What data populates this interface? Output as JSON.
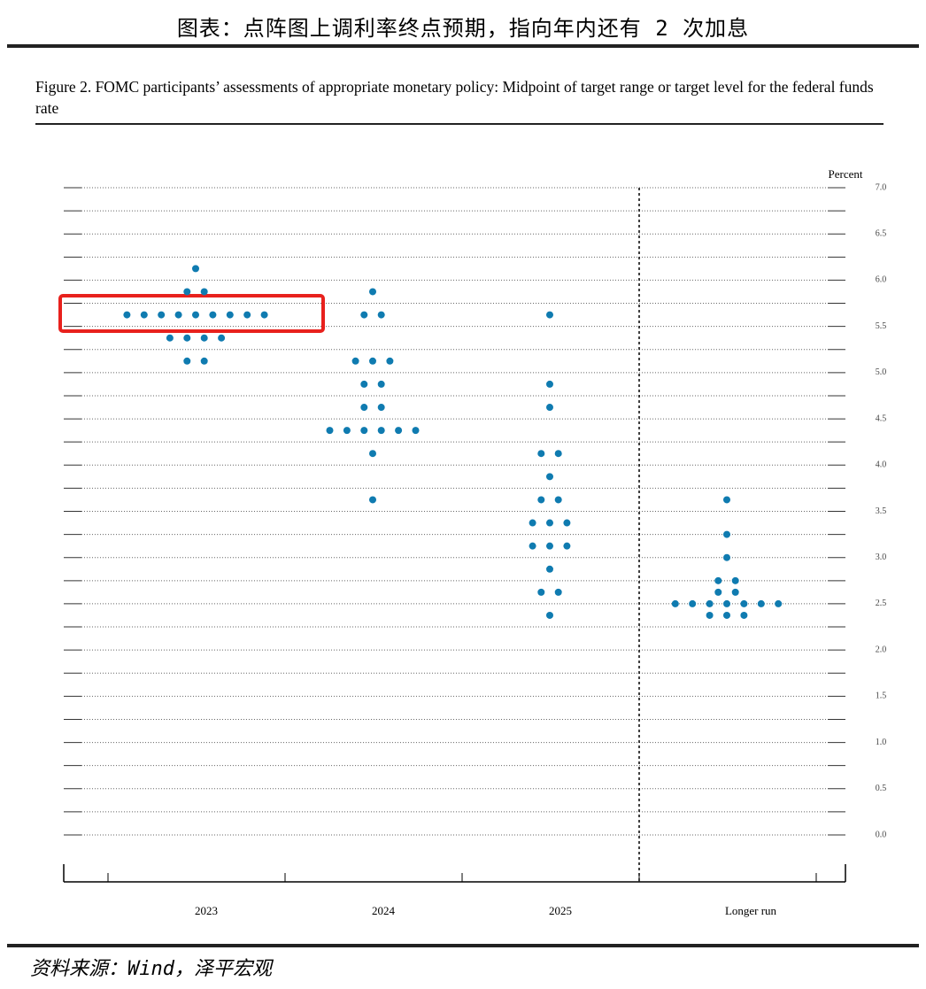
{
  "header": "图表：点阵图上调利率终点预期，指向年内还有 2 次加息",
  "chart_data": {
    "type": "dot",
    "title": "Figure 2.  FOMC participants’ assessments of appropriate monetary policy:  Midpoint of target range or target level for the federal funds rate",
    "y_label": "Percent",
    "categories": [
      "2023",
      "2024",
      "2025",
      "Longer run"
    ],
    "dots": [
      {
        "rates": [
          6.125,
          5.875,
          5.625,
          5.375,
          5.125
        ],
        "counts": [
          1,
          2,
          9,
          4,
          2
        ]
      },
      {
        "rates": [
          5.875,
          5.625,
          5.125,
          4.875,
          4.625,
          4.375,
          4.125,
          3.625
        ],
        "counts": [
          1,
          2,
          3,
          2,
          2,
          6,
          1,
          1
        ]
      },
      {
        "rates": [
          5.625,
          4.875,
          4.625,
          4.125,
          3.875,
          3.625,
          3.375,
          3.125,
          2.875,
          2.625,
          2.375
        ],
        "counts": [
          1,
          1,
          1,
          2,
          1,
          2,
          3,
          3,
          1,
          2,
          1
        ]
      },
      {
        "rates": [
          3.625,
          3.25,
          3.0,
          2.75,
          2.625,
          2.5,
          2.375
        ],
        "counts": [
          1,
          1,
          1,
          2,
          2,
          7,
          3
        ]
      }
    ],
    "color": "#0f7bb0",
    "ylim": [
      0,
      7
    ],
    "yticks": [
      {
        "value": 0,
        "label": "0.0"
      },
      {
        "value": 0.5,
        "label": "0.5"
      },
      {
        "value": 1,
        "label": "1.0"
      },
      {
        "value": 1.5,
        "label": "1.5"
      },
      {
        "value": 2,
        "label": "2.0"
      },
      {
        "value": 2.5,
        "label": "2.5"
      },
      {
        "value": 3,
        "label": "3.0"
      },
      {
        "value": 3.5,
        "label": "3.5"
      },
      {
        "value": 4,
        "label": "4.0"
      },
      {
        "value": 4.5,
        "label": "4.5"
      },
      {
        "value": 5,
        "label": "5.0"
      },
      {
        "value": 5.5,
        "label": "5.5"
      },
      {
        "value": 6,
        "label": "6.0"
      },
      {
        "value": 6.5,
        "label": "6.5"
      },
      {
        "value": 7,
        "label": "7.0"
      }
    ],
    "grid": true
  },
  "source": "资料来源：Wind，泽平宏观"
}
